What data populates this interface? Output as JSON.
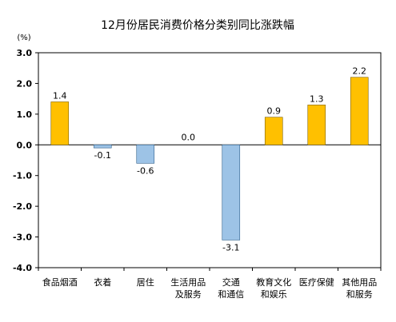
{
  "chart_data": {
    "type": "bar",
    "title": "12月份居民消费价格分类别同比涨跌幅",
    "unit": "(%)",
    "categories": [
      [
        "食品烟酒"
      ],
      [
        "衣着"
      ],
      [
        "居住"
      ],
      [
        "生活用品",
        "及服务"
      ],
      [
        "交通",
        "和通信"
      ],
      [
        "教育文化",
        "和娱乐"
      ],
      [
        "医疗保健"
      ],
      [
        "其他用品",
        "和服务"
      ]
    ],
    "values": [
      1.4,
      -0.1,
      -0.6,
      0.0,
      -3.1,
      0.9,
      1.3,
      2.2
    ],
    "value_labels": [
      "1.4",
      "-0.1",
      "-0.6",
      "0.0",
      "-3.1",
      "0.9",
      "1.3",
      "2.2"
    ],
    "yticks": [
      "3.0",
      "2.0",
      "1.0",
      "0.0",
      "-1.0",
      "-2.0",
      "-3.0",
      "-4.0"
    ],
    "ylim": [
      -4,
      3
    ],
    "grid": false,
    "colors": {
      "positive_fill": "#FFC000",
      "positive_stroke": "#7F6000",
      "negative_fill": "#9DC3E6",
      "negative_stroke": "#2E5F8A",
      "axis": "#000000"
    }
  }
}
